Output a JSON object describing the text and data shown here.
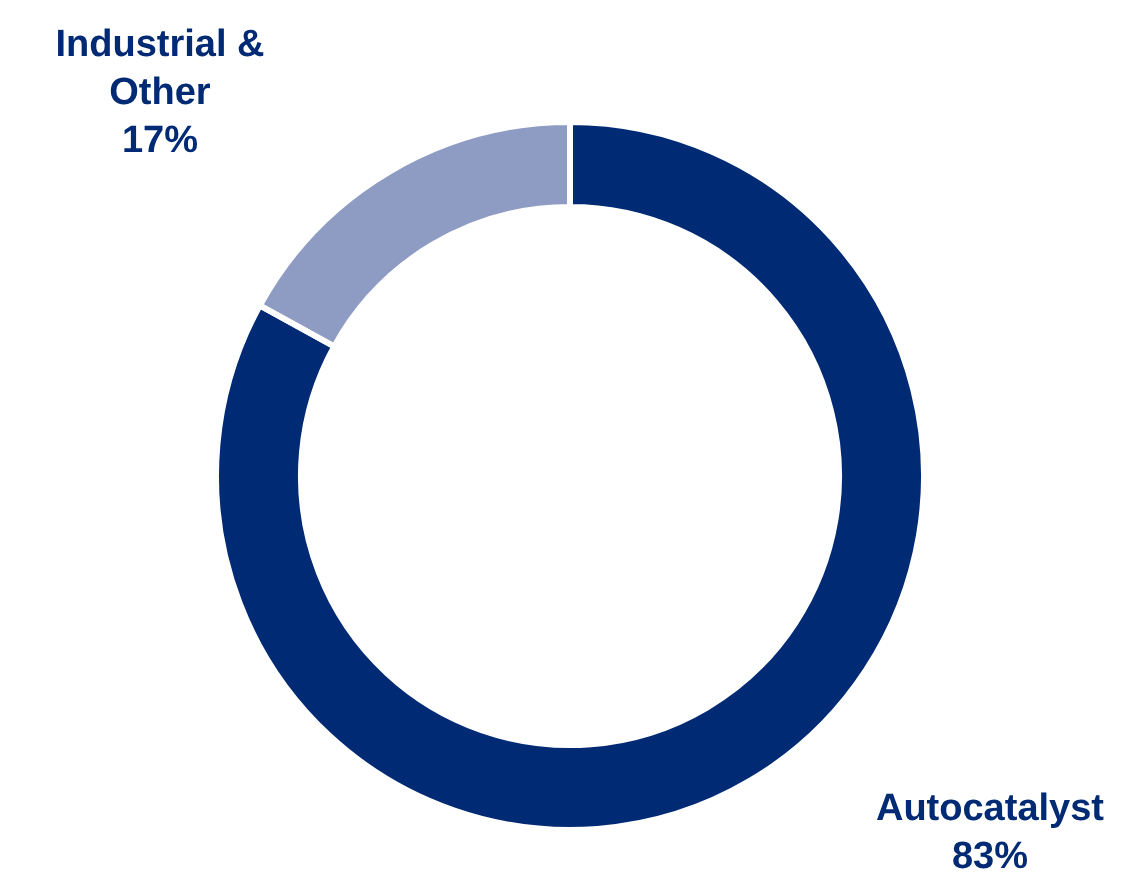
{
  "chart_data": {
    "type": "donut",
    "categories": [
      "Autocatalyst",
      "Industrial & Other"
    ],
    "values": [
      83,
      17
    ],
    "colors": [
      "#002a73",
      "#8e9cc4"
    ],
    "value_labels": [
      "83%",
      "17%"
    ]
  }
}
